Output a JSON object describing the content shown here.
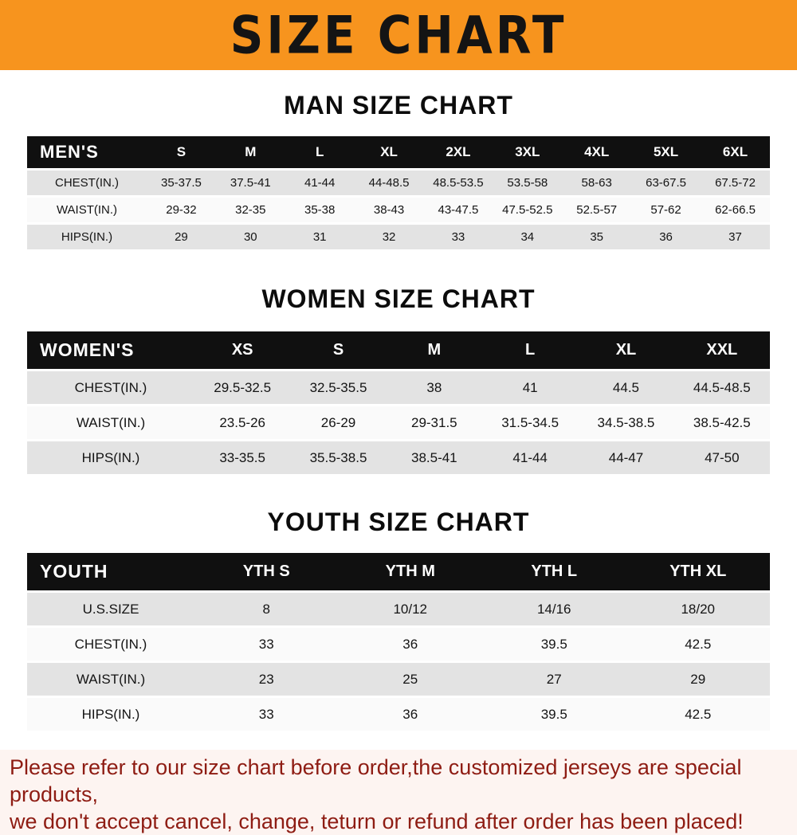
{
  "banner": {
    "title": "SIZE CHART",
    "bg_color": "#f7941e",
    "text_color": "#141414"
  },
  "footer": {
    "line1": "Please refer to our size chart before order,the customized jerseys are special products,",
    "line2": "we don't accept cancel, change, teturn or refund after order has been placed!",
    "text_color": "#8e1c13"
  },
  "chart_data": [
    {
      "type": "table",
      "title": "MAN SIZE CHART",
      "header_label": "MEN'S",
      "columns": [
        "S",
        "M",
        "L",
        "XL",
        "2XL",
        "3XL",
        "4XL",
        "5XL",
        "6XL"
      ],
      "rows": [
        {
          "label": "CHEST(IN.)",
          "values": [
            "35-37.5",
            "37.5-41",
            "41-44",
            "44-48.5",
            "48.5-53.5",
            "53.5-58",
            "58-63",
            "63-67.5",
            "67.5-72"
          ]
        },
        {
          "label": "WAIST(IN.)",
          "values": [
            "29-32",
            "32-35",
            "35-38",
            "38-43",
            "43-47.5",
            "47.5-52.5",
            "52.5-57",
            "57-62",
            "62-66.5"
          ]
        },
        {
          "label": "HIPS(IN.)",
          "values": [
            "29",
            "30",
            "31",
            "32",
            "33",
            "34",
            "35",
            "36",
            "37"
          ]
        }
      ]
    },
    {
      "type": "table",
      "title": "WOMEN SIZE CHART",
      "header_label": "WOMEN'S",
      "columns": [
        "XS",
        "S",
        "M",
        "L",
        "XL",
        "XXL"
      ],
      "rows": [
        {
          "label": "CHEST(IN.)",
          "values": [
            "29.5-32.5",
            "32.5-35.5",
            "38",
            "41",
            "44.5",
            "44.5-48.5"
          ]
        },
        {
          "label": "WAIST(IN.)",
          "values": [
            "23.5-26",
            "26-29",
            "29-31.5",
            "31.5-34.5",
            "34.5-38.5",
            "38.5-42.5"
          ]
        },
        {
          "label": "HIPS(IN.)",
          "values": [
            "33-35.5",
            "35.5-38.5",
            "38.5-41",
            "41-44",
            "44-47",
            "47-50"
          ]
        }
      ]
    },
    {
      "type": "table",
      "title": "YOUTH SIZE CHART",
      "header_label": "YOUTH",
      "columns": [
        "YTH S",
        "YTH M",
        "YTH L",
        "YTH XL"
      ],
      "rows": [
        {
          "label": "U.S.SIZE",
          "values": [
            "8",
            "10/12",
            "14/16",
            "18/20"
          ]
        },
        {
          "label": "CHEST(IN.)",
          "values": [
            "33",
            "36",
            "39.5",
            "42.5"
          ]
        },
        {
          "label": "WAIST(IN.)",
          "values": [
            "23",
            "25",
            "27",
            "29"
          ]
        },
        {
          "label": "HIPS(IN.)",
          "values": [
            "33",
            "36",
            "39.5",
            "42.5"
          ]
        }
      ]
    }
  ]
}
